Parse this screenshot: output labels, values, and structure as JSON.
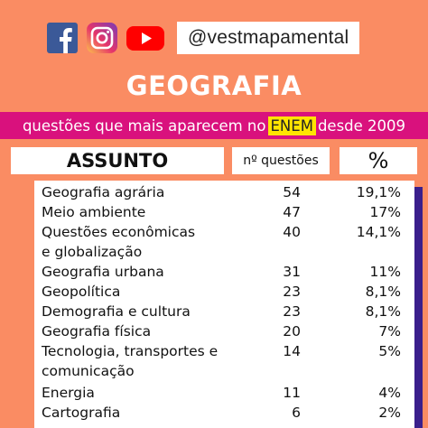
{
  "social": {
    "icons": [
      "facebook-icon",
      "instagram-icon",
      "youtube-icon"
    ],
    "handle": "@vestmapamental"
  },
  "title": "GEOGRAFIA",
  "banner": {
    "before": "questões que mais aparecem no",
    "highlight": "ENEM",
    "after": "desde 2009"
  },
  "headers": {
    "subject": "ASSUNTO",
    "count": "nº questões",
    "percent": "%"
  },
  "rows": [
    {
      "subject": "Geografia agrária",
      "count": "54",
      "percent": "19,1%"
    },
    {
      "subject": "Meio ambiente",
      "count": "47",
      "percent": "17%"
    },
    {
      "subject": "Questões econômicas",
      "subject2": "e globalização",
      "count": "40",
      "percent": "14,1%"
    },
    {
      "subject": "Geografia urbana",
      "count": "31",
      "percent": "11%"
    },
    {
      "subject": "Geopolítica",
      "count": "23",
      "percent": "8,1%"
    },
    {
      "subject": "Demografia e cultura",
      "count": "23",
      "percent": "8,1%"
    },
    {
      "subject": "Geografia física",
      "count": "20",
      "percent": "7%"
    },
    {
      "subject": "Tecnologia, transportes e",
      "subject2": "comunicação",
      "count": "14",
      "percent": "5%"
    },
    {
      "subject": "Energia",
      "count": "11",
      "percent": "4%"
    },
    {
      "subject": "Cartografia",
      "count": "6",
      "percent": "2%"
    }
  ],
  "colors": {
    "background": "#fa8c63",
    "banner": "#d9117d",
    "highlight": "#ffe400",
    "table_shadow": "#3a1f8c"
  }
}
